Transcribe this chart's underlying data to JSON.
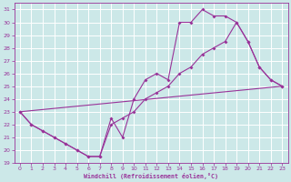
{
  "background_color": "#cce8e8",
  "grid_color": "#ffffff",
  "line_color": "#993399",
  "xlabel": "Windchill (Refroidissement éolien,°C)",
  "xlim": [
    -0.5,
    23.5
  ],
  "ylim": [
    19,
    31.5
  ],
  "yticks": [
    19,
    20,
    21,
    22,
    23,
    24,
    25,
    26,
    27,
    28,
    29,
    30,
    31
  ],
  "xticks": [
    0,
    1,
    2,
    3,
    4,
    5,
    6,
    7,
    8,
    9,
    10,
    11,
    12,
    13,
    14,
    15,
    16,
    17,
    18,
    19,
    20,
    21,
    22,
    23
  ],
  "line1_x": [
    0,
    1,
    2,
    3,
    4,
    5,
    6,
    7,
    8,
    9,
    10,
    11,
    12,
    13,
    14,
    15,
    16,
    17,
    18,
    19,
    20,
    21,
    22,
    23
  ],
  "line1_y": [
    23,
    22,
    21.5,
    21,
    20.5,
    20,
    19.5,
    19.5,
    22.5,
    21.0,
    24.0,
    25.5,
    26.0,
    25.5,
    30.0,
    30.0,
    31.0,
    30.5,
    30.5,
    30.0,
    28.5,
    26.5,
    25.5,
    25.0
  ],
  "line2_x": [
    0,
    1,
    2,
    3,
    4,
    5,
    6,
    7,
    8,
    9,
    10,
    11,
    12,
    13,
    14,
    15,
    16,
    17,
    18,
    19,
    20,
    21,
    22,
    23
  ],
  "line2_y": [
    23,
    22,
    21.5,
    21,
    20.5,
    20,
    19.5,
    19.5,
    22.0,
    22.5,
    23.0,
    24.0,
    24.5,
    25.0,
    26.0,
    26.5,
    27.5,
    28.0,
    28.5,
    30.0,
    28.5,
    26.5,
    25.5,
    25.0
  ],
  "line3_x": [
    0,
    23
  ],
  "line3_y": [
    23,
    25
  ]
}
